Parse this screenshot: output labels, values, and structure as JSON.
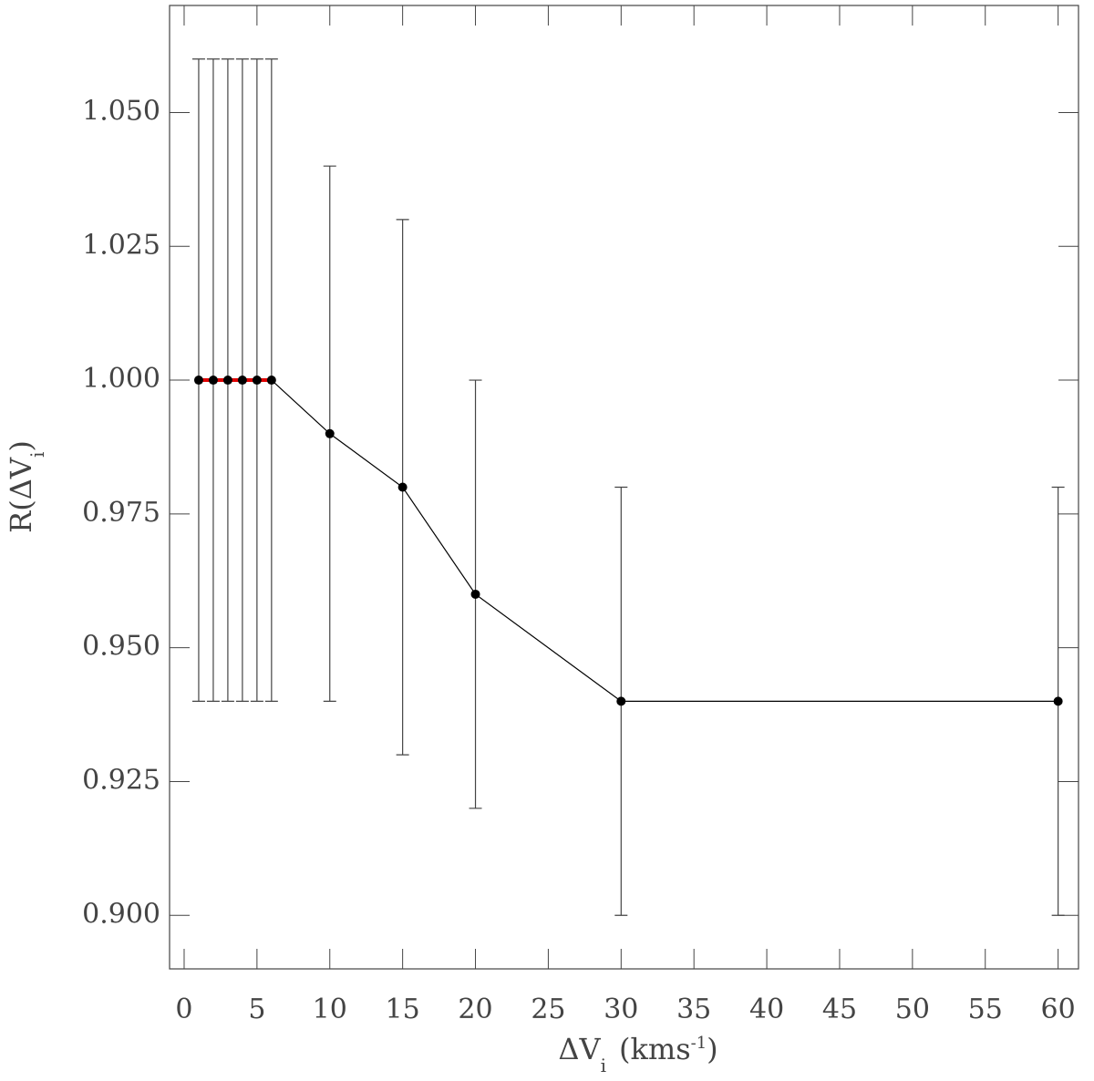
{
  "chart_data": {
    "type": "line",
    "xlabel": [
      "ΔV",
      "i",
      "(kms",
      "-1",
      ")"
    ],
    "ylabel": [
      "R(ΔV",
      "i",
      ")"
    ],
    "xlim": [
      -1,
      61.4
    ],
    "ylim": [
      0.89,
      1.07
    ],
    "xticks": [
      0,
      5,
      10,
      15,
      20,
      25,
      30,
      35,
      40,
      45,
      50,
      55,
      60
    ],
    "yticks": [
      {
        "value": 0.9,
        "label": "0.900"
      },
      {
        "value": 0.925,
        "label": "0.925"
      },
      {
        "value": 0.95,
        "label": "0.950"
      },
      {
        "value": 0.975,
        "label": "0.975"
      },
      {
        "value": 1.0,
        "label": "1.000"
      },
      {
        "value": 1.025,
        "label": "1.025"
      },
      {
        "value": 1.05,
        "label": "1.050"
      }
    ],
    "series": [
      {
        "color": "#000000",
        "markers": true,
        "x": [
          1,
          2,
          3,
          4,
          5,
          6,
          10,
          15,
          20,
          30,
          60
        ],
        "values": [
          1.0,
          1.0,
          1.0,
          1.0,
          1.0,
          1.0,
          0.99,
          0.98,
          0.96,
          0.94,
          0.94
        ],
        "errors": [
          0.06,
          0.06,
          0.06,
          0.06,
          0.06,
          0.06,
          0.05,
          0.05,
          0.04,
          0.04,
          0.04
        ]
      },
      {
        "color": "#e00000",
        "markers": false,
        "x": [
          1,
          2,
          3,
          4,
          5,
          6
        ],
        "values": [
          1.0,
          1.0,
          1.0,
          1.0,
          1.0,
          1.0
        ]
      }
    ]
  }
}
